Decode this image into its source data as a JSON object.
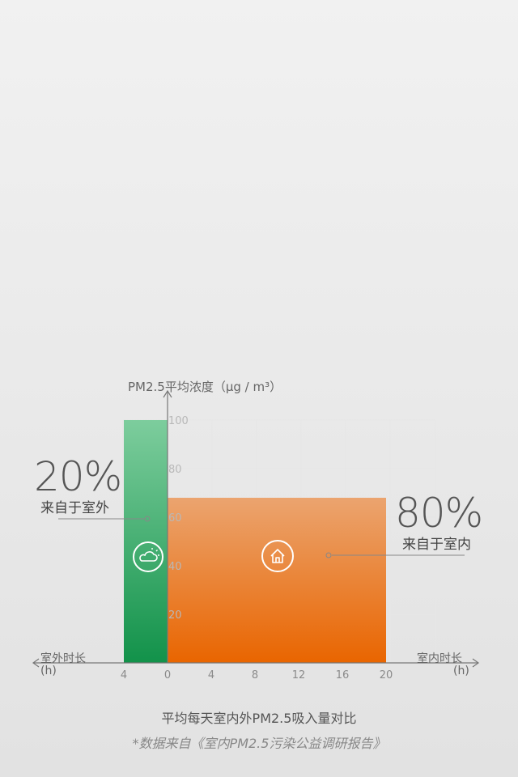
{
  "chart_data": {
    "type": "bar",
    "title": "平均每天室内外PM2.5吸入量对比",
    "source_note": "*数据来自《室内PM2.5污染公益调研报告》",
    "ylabel": "PM2.5平均浓度（μg / m³）",
    "ylim": [
      0,
      100
    ],
    "y_ticks": [
      "20",
      "40",
      "60",
      "80",
      "100"
    ],
    "left_axis_label": "室外时长",
    "right_axis_label": "室内时长",
    "unit_label": "(h)",
    "x_ticks_outdoor": [
      "4"
    ],
    "x_ticks_indoor": [
      "0",
      "4",
      "8",
      "12",
      "16",
      "20"
    ],
    "grid": true,
    "series": [
      {
        "label": "室外",
        "x_range": [
          -4,
          0
        ],
        "value": 100,
        "share_percent": "20%",
        "share_text": "来自于室外",
        "color_top": "#7dcd9d",
        "color_bottom": "#12924a",
        "icon": "cloud-sun-icon"
      },
      {
        "label": "室内",
        "x_range": [
          0,
          20
        ],
        "value": 68,
        "share_percent": "80%",
        "share_text": "来自于室内",
        "color_top": "#eba46f",
        "color_bottom": "#e96500",
        "icon": "house-icon"
      }
    ]
  }
}
